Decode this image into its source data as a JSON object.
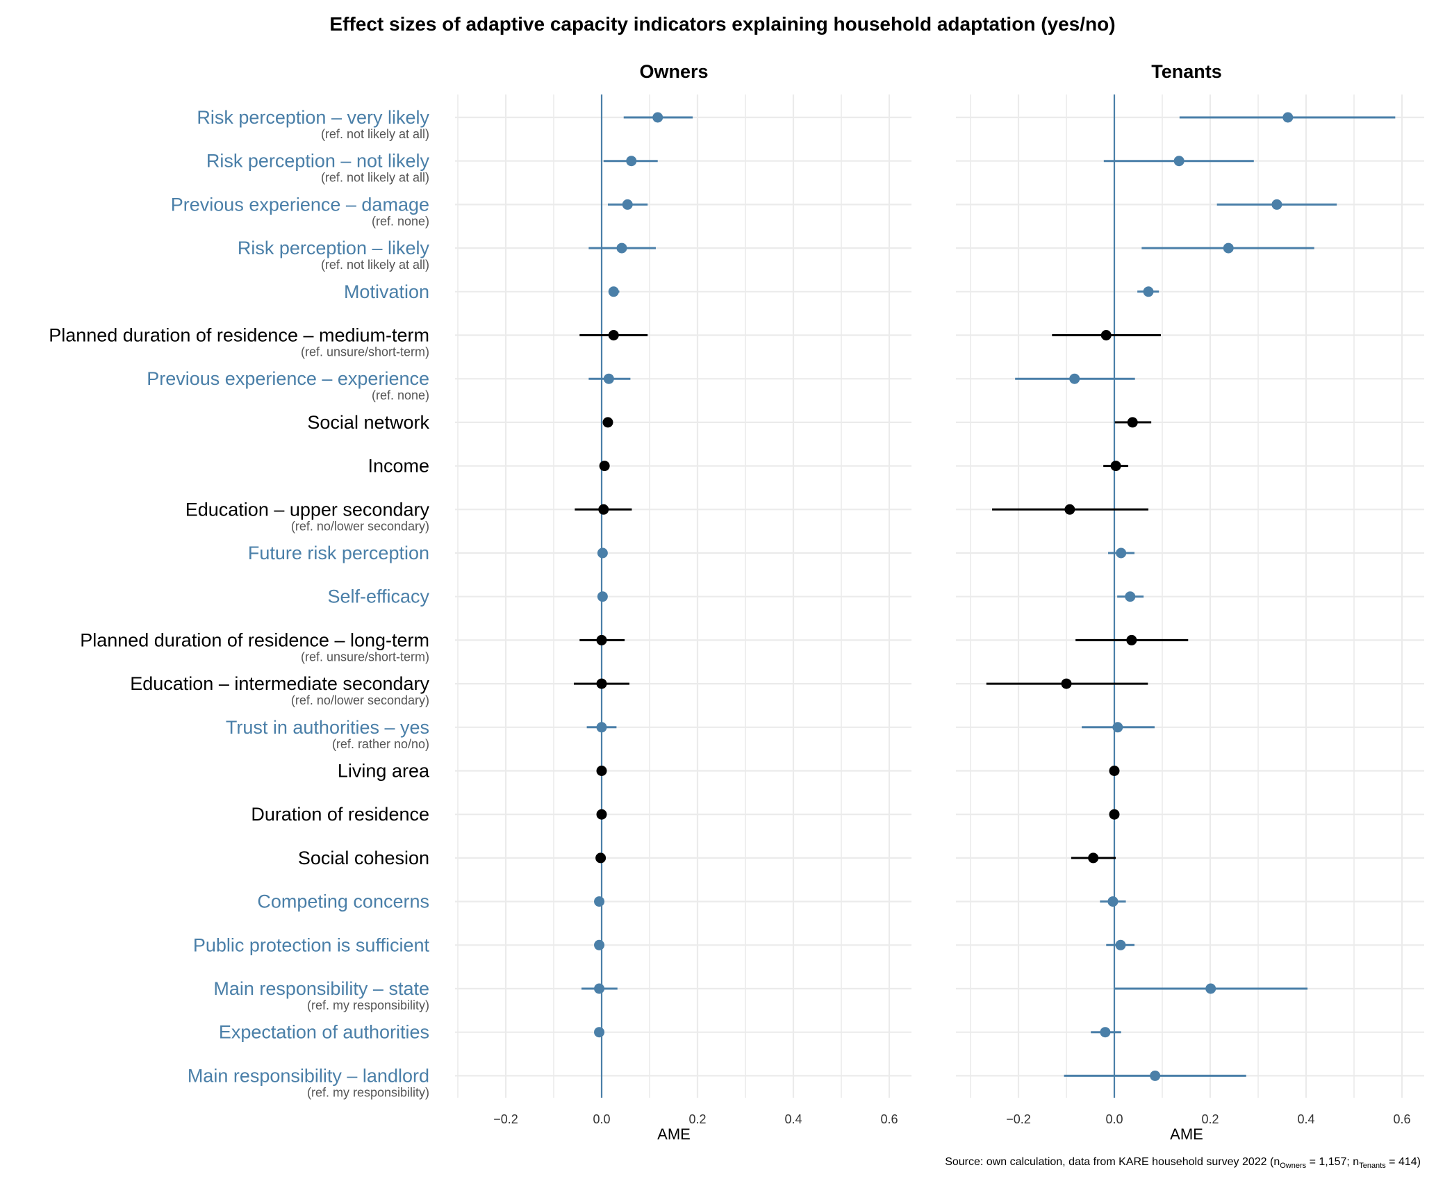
{
  "chart_data": {
    "type": "scatter",
    "subtype": "coefficient-plot-with-confidence-intervals",
    "title": "Effect sizes of adaptive capacity indicators explaining household adaptation (yes/no)",
    "xlabel": "AME",
    "xlim": [
      -0.3,
      0.64
    ],
    "x_ticks": [
      -0.2,
      0.0,
      0.2,
      0.4,
      0.6
    ],
    "x_tick_labels": [
      "−0.2",
      "0.0",
      "0.2",
      "0.4",
      "0.6"
    ],
    "grid": true,
    "reference_line": 0.0,
    "colors": {
      "psychological": "#4a7fa8",
      "socioeconomic": "#000000",
      "reference_label": "#555555",
      "grid": "#ebebeb",
      "zero_line": "#4a7fa8"
    },
    "panels": [
      "Owners",
      "Tenants"
    ],
    "caption": {
      "prefix": "Source: own calculation, data from KARE household survey 2022 (n",
      "sub1": "Owners",
      "mid": " = 1,157; n",
      "sub2": "Tenants",
      "suffix": " = 414)"
    },
    "indicators": [
      {
        "label": "Risk perception – very likely",
        "ref": "(ref. not likely at all)",
        "group": "psychological",
        "owners": {
          "ame": 0.117,
          "low": 0.046,
          "high": 0.19
        },
        "tenants": {
          "ame": 0.362,
          "low": 0.136,
          "high": 0.586
        }
      },
      {
        "label": "Risk perception – not likely",
        "ref": "(ref. not likely at all)",
        "group": "psychological",
        "owners": {
          "ame": 0.062,
          "low": 0.004,
          "high": 0.117
        },
        "tenants": {
          "ame": 0.135,
          "low": -0.022,
          "high": 0.291
        }
      },
      {
        "label": "Previous experience – damage",
        "ref": "(ref. none)",
        "group": "psychological",
        "owners": {
          "ame": 0.054,
          "low": 0.013,
          "high": 0.096
        },
        "tenants": {
          "ame": 0.339,
          "low": 0.214,
          "high": 0.464
        }
      },
      {
        "label": "Risk perception – likely",
        "ref": "(ref. not likely at all)",
        "group": "psychological",
        "owners": {
          "ame": 0.042,
          "low": -0.027,
          "high": 0.113
        },
        "tenants": {
          "ame": 0.238,
          "low": 0.057,
          "high": 0.417
        }
      },
      {
        "label": "Motivation",
        "ref": "",
        "group": "psychological",
        "owners": {
          "ame": 0.025,
          "low": 0.015,
          "high": 0.037
        },
        "tenants": {
          "ame": 0.071,
          "low": 0.048,
          "high": 0.093
        }
      },
      {
        "label": "Planned duration of residence – medium-term",
        "ref": "(ref. unsure/short-term)",
        "group": "socioeconomic",
        "owners": {
          "ame": 0.025,
          "low": -0.046,
          "high": 0.096
        },
        "tenants": {
          "ame": -0.017,
          "low": -0.13,
          "high": 0.097
        }
      },
      {
        "label": "Previous experience – experience",
        "ref": "(ref. none)",
        "group": "psychological",
        "owners": {
          "ame": 0.015,
          "low": -0.027,
          "high": 0.06
        },
        "tenants": {
          "ame": -0.083,
          "low": -0.207,
          "high": 0.043
        }
      },
      {
        "label": "Social network",
        "ref": "",
        "group": "socioeconomic",
        "owners": {
          "ame": 0.013,
          "low": 0.009,
          "high": 0.017
        },
        "tenants": {
          "ame": 0.038,
          "low": 0.001,
          "high": 0.077
        }
      },
      {
        "label": "Income",
        "ref": "",
        "group": "socioeconomic",
        "owners": {
          "ame": 0.006,
          "low": 0.004,
          "high": 0.008
        },
        "tenants": {
          "ame": 0.003,
          "low": -0.023,
          "high": 0.029
        }
      },
      {
        "label": "Education – upper secondary",
        "ref": "(ref. no/lower  secondary)",
        "group": "socioeconomic",
        "owners": {
          "ame": 0.004,
          "low": -0.056,
          "high": 0.063
        },
        "tenants": {
          "ame": -0.093,
          "low": -0.255,
          "high": 0.071
        }
      },
      {
        "label": "Future risk perception",
        "ref": "",
        "group": "psychological",
        "owners": {
          "ame": 0.002,
          "low": 0.0,
          "high": 0.004
        },
        "tenants": {
          "ame": 0.014,
          "low": -0.013,
          "high": 0.042
        }
      },
      {
        "label": "Self-efficacy",
        "ref": "",
        "group": "psychological",
        "owners": {
          "ame": 0.002,
          "low": 0.0,
          "high": 0.004
        },
        "tenants": {
          "ame": 0.033,
          "low": 0.006,
          "high": 0.061
        }
      },
      {
        "label": "Planned duration of residence – long-term",
        "ref": "(ref. unsure/short-term)",
        "group": "socioeconomic",
        "owners": {
          "ame": 0.0,
          "low": -0.046,
          "high": 0.048
        },
        "tenants": {
          "ame": 0.036,
          "low": -0.081,
          "high": 0.154
        }
      },
      {
        "label": "Education – intermediate secondary",
        "ref": "(ref. no/lower  secondary)",
        "group": "socioeconomic",
        "owners": {
          "ame": 0.0,
          "low": -0.058,
          "high": 0.058
        },
        "tenants": {
          "ame": -0.1,
          "low": -0.267,
          "high": 0.07
        }
      },
      {
        "label": "Trust in authorities – yes",
        "ref": "(ref. rather no/no)",
        "group": "psychological",
        "owners": {
          "ame": 0.0,
          "low": -0.031,
          "high": 0.031
        },
        "tenants": {
          "ame": 0.007,
          "low": -0.068,
          "high": 0.084
        }
      },
      {
        "label": "Living area",
        "ref": "",
        "group": "socioeconomic",
        "owners": {
          "ame": 0.0,
          "low": -0.001,
          "high": 0.001
        },
        "tenants": {
          "ame": 0.0,
          "low": -0.001,
          "high": 0.001
        }
      },
      {
        "label": "Duration of residence",
        "ref": "",
        "group": "socioeconomic",
        "owners": {
          "ame": 0.0,
          "low": -0.001,
          "high": 0.001
        },
        "tenants": {
          "ame": 0.0,
          "low": -0.001,
          "high": 0.001
        }
      },
      {
        "label": "Social cohesion",
        "ref": "",
        "group": "socioeconomic",
        "owners": {
          "ame": -0.002,
          "low": -0.01,
          "high": 0.007
        },
        "tenants": {
          "ame": -0.044,
          "low": -0.09,
          "high": 0.003
        }
      },
      {
        "label": "Competing concerns",
        "ref": "",
        "group": "psychological",
        "owners": {
          "ame": -0.005,
          "low": -0.007,
          "high": -0.003
        },
        "tenants": {
          "ame": -0.003,
          "low": -0.03,
          "high": 0.024
        }
      },
      {
        "label": "Public protection is sufficient",
        "ref": "",
        "group": "psychological",
        "owners": {
          "ame": -0.005,
          "low": -0.012,
          "high": 0.003
        },
        "tenants": {
          "ame": 0.013,
          "low": -0.017,
          "high": 0.042
        }
      },
      {
        "label": "Main responsibility – state",
        "ref": "(ref. my responsibility)",
        "group": "psychological",
        "owners": {
          "ame": -0.005,
          "low": -0.042,
          "high": 0.033
        },
        "tenants": {
          "ame": 0.201,
          "low": 0.0,
          "high": 0.403
        }
      },
      {
        "label": "Expectation of authorities",
        "ref": "",
        "group": "psychological",
        "owners": {
          "ame": -0.005,
          "low": -0.013,
          "high": 0.004
        },
        "tenants": {
          "ame": -0.019,
          "low": -0.049,
          "high": 0.014
        }
      },
      {
        "label": "Main responsibility – landlord",
        "ref": "(ref. my responsibility)",
        "group": "psychological",
        "owners": null,
        "tenants": {
          "ame": 0.085,
          "low": -0.105,
          "high": 0.275
        }
      }
    ]
  }
}
